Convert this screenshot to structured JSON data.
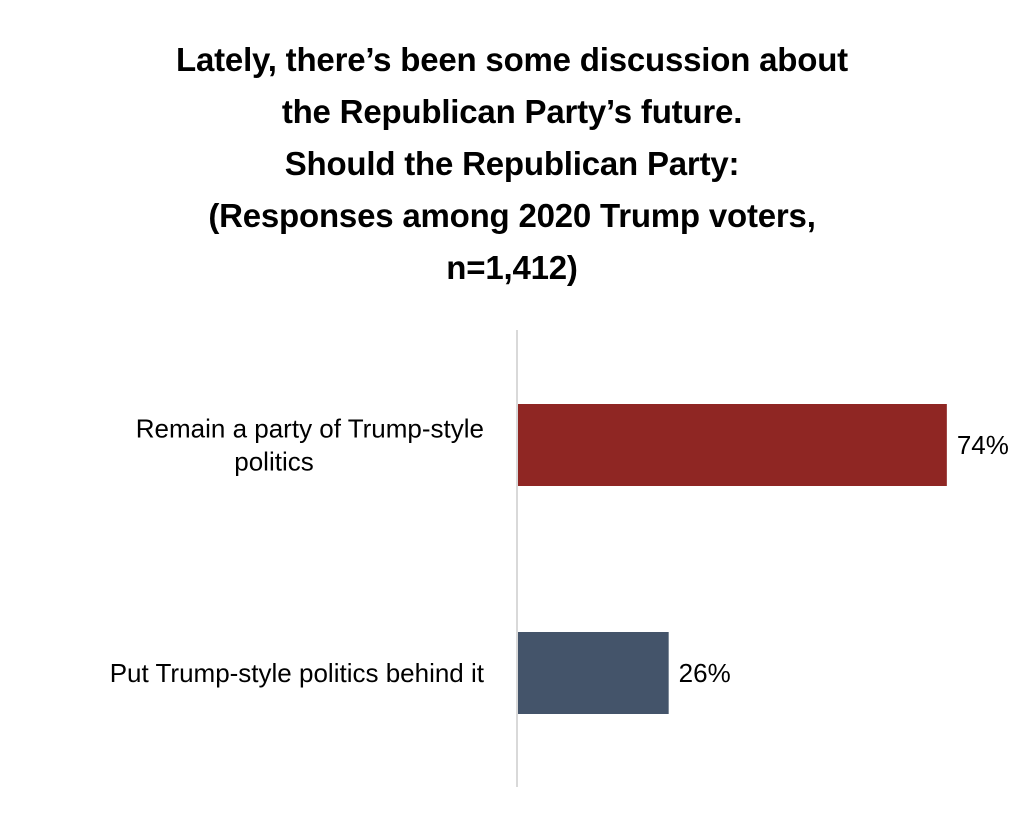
{
  "title_lines": [
    "Lately, there’s been some discussion about",
    "the Republican Party’s future.",
    "Should the Republican Party:",
    "(Responses among 2020 Trump voters,",
    "n=1,412)"
  ],
  "chart_data": {
    "type": "bar",
    "orientation": "horizontal",
    "title": "Lately, there’s been some discussion about the Republican Party’s future. Should the Republican Party: (Responses among 2020 Trump voters, n=1,412)",
    "categories": [
      [
        "Remain a party of Trump-style",
        "politics"
      ],
      [
        "Put Trump-style politics behind it"
      ]
    ],
    "values": [
      74,
      26
    ],
    "value_labels": [
      "74%",
      "26%"
    ],
    "colors": [
      "#8f2623",
      "#44546a"
    ],
    "xlim": [
      0,
      75
    ],
    "xlabel": "",
    "ylabel": "",
    "grid": false,
    "legend": "none"
  }
}
